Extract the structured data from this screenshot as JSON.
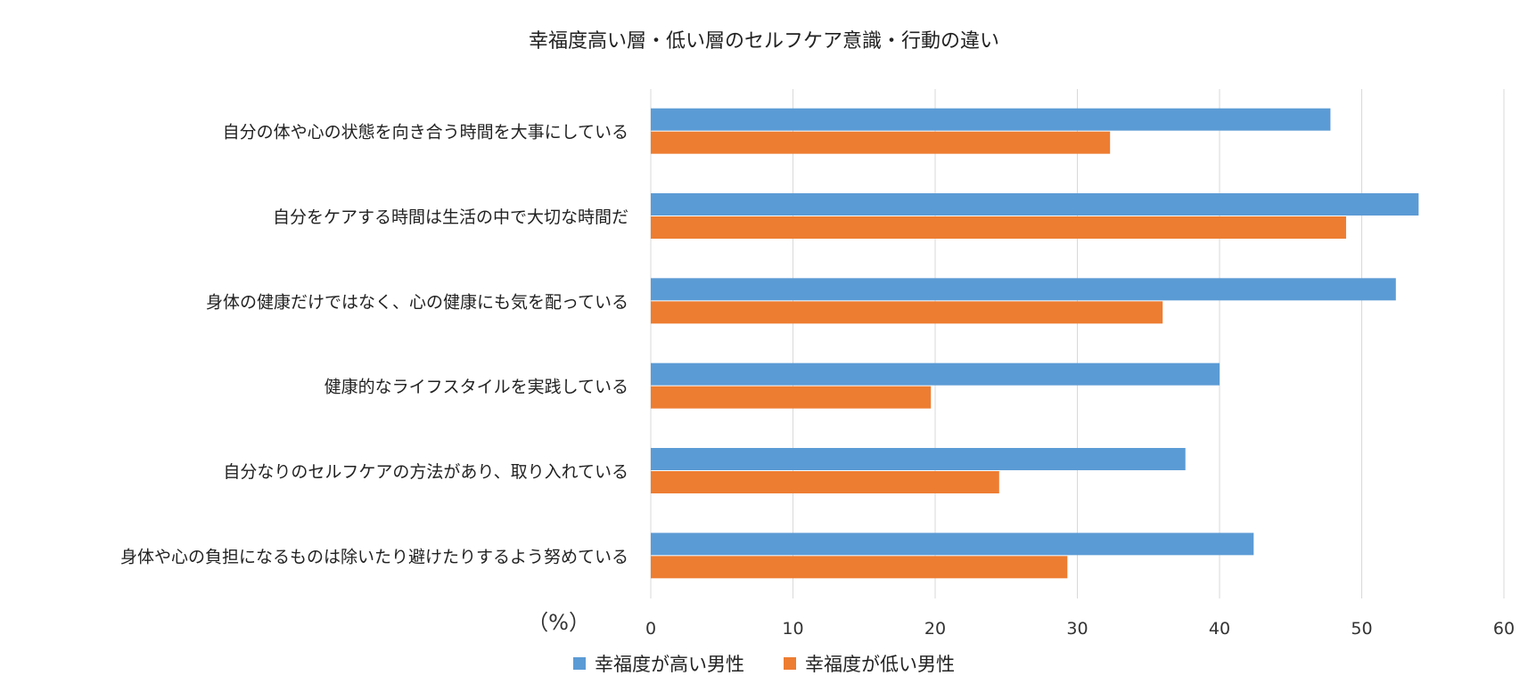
{
  "chart_data": {
    "type": "bar",
    "orientation": "horizontal",
    "title": "幸福度高い層・低い層のセルフケア意識・行動の違い",
    "xlabel": "（%）",
    "ylabel": "",
    "xlim": [
      0,
      60
    ],
    "xticks": [
      0,
      10,
      20,
      30,
      40,
      50,
      60
    ],
    "grid": true,
    "legend_position": "bottom",
    "categories": [
      "自分の体や心の状態を向き合う時間を大事にしている",
      "自分をケアする時間は生活の中で大切な時間だ",
      "身体の健康だけではなく、心の健康にも気を配っている",
      "健康的なライフスタイルを実践している",
      "自分なりのセルフケアの方法があり、取り入れている",
      "身体や心の負担になるものは除いたり避けたりするよう努めている"
    ],
    "series": [
      {
        "name": "幸福度が高い男性",
        "color": "#5b9bd5",
        "values": [
          47.8,
          54.0,
          52.4,
          40.0,
          37.6,
          42.4
        ]
      },
      {
        "name": "幸福度が低い男性",
        "color": "#ed7d31",
        "values": [
          32.3,
          48.9,
          36.0,
          19.7,
          24.5,
          29.3
        ]
      }
    ]
  }
}
